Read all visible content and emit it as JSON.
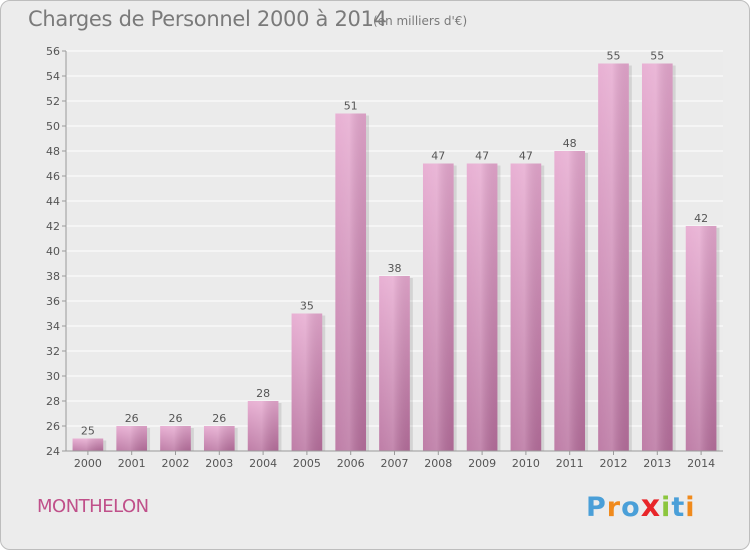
{
  "header": {
    "title": "Charges de Personnel 2000 à 2014",
    "subtitle": "(en milliers d'€)"
  },
  "footer": {
    "commune": "MONTHELON",
    "brand": "Proxiti"
  },
  "colors": {
    "bar_light": "#e6a8cf",
    "bar_dark": "#b76f9d",
    "commune_text": "#c0508a",
    "brand_letters": [
      "#4a9fd8",
      "#f08a1c",
      "#4a9fd8",
      "#e8262a",
      "#8cc63e",
      "#4a9fd8",
      "#f08a1c"
    ]
  },
  "chart_data": {
    "type": "bar",
    "categories": [
      "2000",
      "2001",
      "2002",
      "2003",
      "2004",
      "2005",
      "2006",
      "2007",
      "2008",
      "2009",
      "2010",
      "2011",
      "2012",
      "2013",
      "2014"
    ],
    "values": [
      25,
      26,
      26,
      26,
      28,
      35,
      51,
      38,
      47,
      47,
      47,
      48,
      55,
      55,
      42
    ],
    "title": "Charges de Personnel 2000 à 2014",
    "subtitle": "(en milliers d'€)",
    "xlabel": "",
    "ylabel": "",
    "ylim": [
      24,
      56
    ],
    "yticks": [
      24,
      26,
      28,
      30,
      32,
      34,
      36,
      38,
      40,
      42,
      44,
      46,
      48,
      50,
      52,
      54,
      56
    ],
    "grid": true,
    "legend": "none",
    "data_labels": true
  }
}
